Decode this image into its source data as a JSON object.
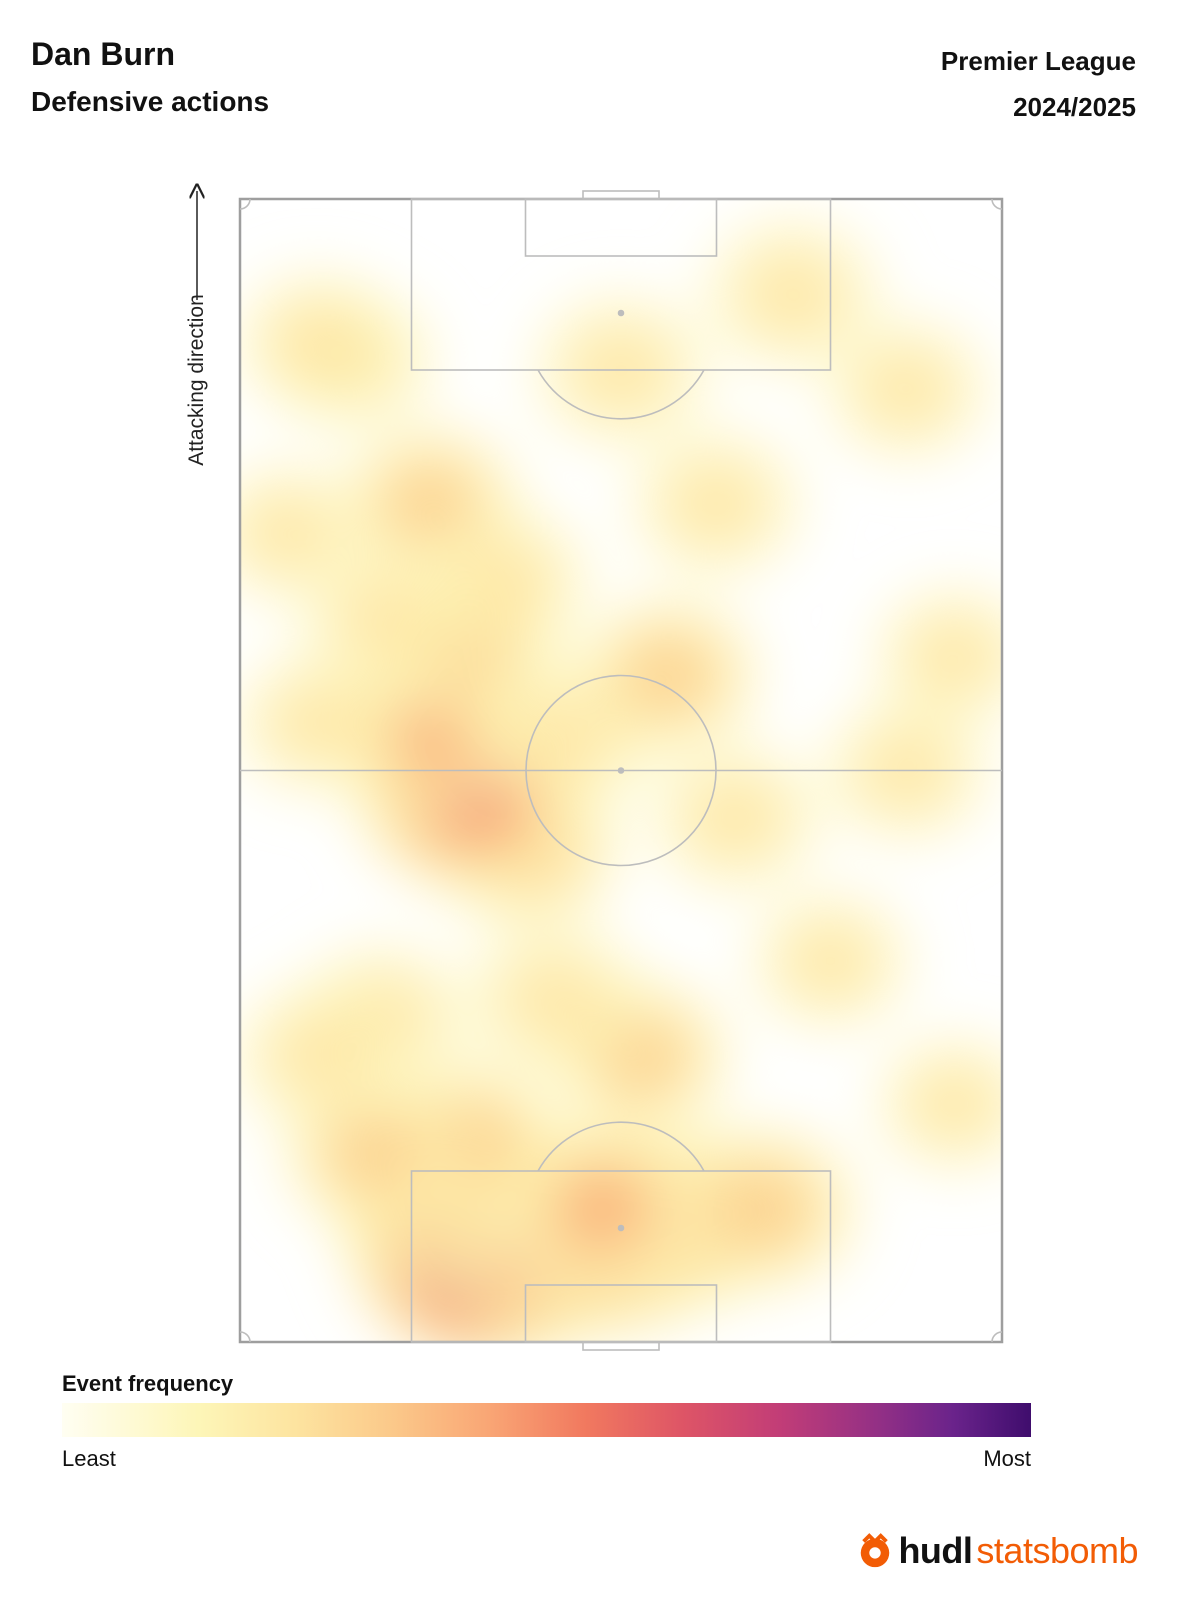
{
  "header": {
    "player_name": "Dan Burn",
    "metric": "Defensive actions",
    "competition": "Premier League",
    "season": "2024/2025"
  },
  "pitch": {
    "direction_label": "Attacking direction"
  },
  "legend": {
    "title": "Event frequency",
    "least_label": "Least",
    "most_label": "Most",
    "colors": [
      "#fffef2",
      "#fdf6b8",
      "#fde4a0",
      "#fbc98a",
      "#f9a675",
      "#f1795f",
      "#de5566",
      "#c23d77",
      "#943085",
      "#6a238b",
      "#3f0d6d"
    ]
  },
  "brand": {
    "logo_part1": "hudl",
    "logo_part2": "statsbomb",
    "accent": "#f25c05"
  },
  "chart_data": {
    "type": "heatmap",
    "x_range": [
      0,
      80
    ],
    "y_range": [
      0,
      120
    ],
    "hotspots": [
      {
        "x": 26,
        "y": 10.5,
        "w": 10
      },
      {
        "x": 33,
        "y": 11,
        "w": 6
      },
      {
        "x": 40,
        "y": 11.5,
        "w": 5
      },
      {
        "x": 47,
        "y": 13,
        "w": 3
      },
      {
        "x": 38,
        "y": 14,
        "w": 2.5
      },
      {
        "x": 55,
        "y": 14,
        "w": 2
      },
      {
        "x": 20,
        "y": 14,
        "w": 2
      },
      {
        "x": 24,
        "y": 21,
        "w": 2
      },
      {
        "x": 14,
        "y": 20,
        "w": 1.5
      },
      {
        "x": 42,
        "y": 30,
        "w": 1.5
      },
      {
        "x": 33,
        "y": 36,
        "w": 1.3
      },
      {
        "x": 15,
        "y": 34,
        "w": 1
      },
      {
        "x": 30,
        "y": 52,
        "w": 2
      },
      {
        "x": 24,
        "y": 58,
        "w": 5
      },
      {
        "x": 20,
        "y": 64,
        "w": 2.5
      },
      {
        "x": 24,
        "y": 73,
        "w": 1.5
      },
      {
        "x": 35,
        "y": 64,
        "w": 1.2
      },
      {
        "x": 45,
        "y": 70,
        "w": 1.5
      },
      {
        "x": 52,
        "y": 55,
        "w": 1
      },
      {
        "x": 20,
        "y": 88,
        "w": 1.5
      },
      {
        "x": 28,
        "y": 80,
        "w": 0.8
      },
      {
        "x": 15,
        "y": 76,
        "w": 0.8
      },
      {
        "x": 40,
        "y": 102,
        "w": 1.2
      },
      {
        "x": 58,
        "y": 110,
        "w": 1.2
      },
      {
        "x": 12,
        "y": 103,
        "w": 0.6
      },
      {
        "x": 70,
        "y": 100,
        "w": 0.7
      },
      {
        "x": 75,
        "y": 72,
        "w": 0.6
      },
      {
        "x": 70,
        "y": 60,
        "w": 0.8
      },
      {
        "x": 62,
        "y": 40,
        "w": 0.6
      },
      {
        "x": 75,
        "y": 25,
        "w": 0.5
      },
      {
        "x": 8,
        "y": 30,
        "w": 0.8
      },
      {
        "x": 8,
        "y": 65,
        "w": 0.7
      },
      {
        "x": 8,
        "y": 105,
        "w": 0.6
      },
      {
        "x": 50,
        "y": 88,
        "w": 1.0
      },
      {
        "x": 5,
        "y": 85,
        "w": 0.6
      }
    ]
  }
}
